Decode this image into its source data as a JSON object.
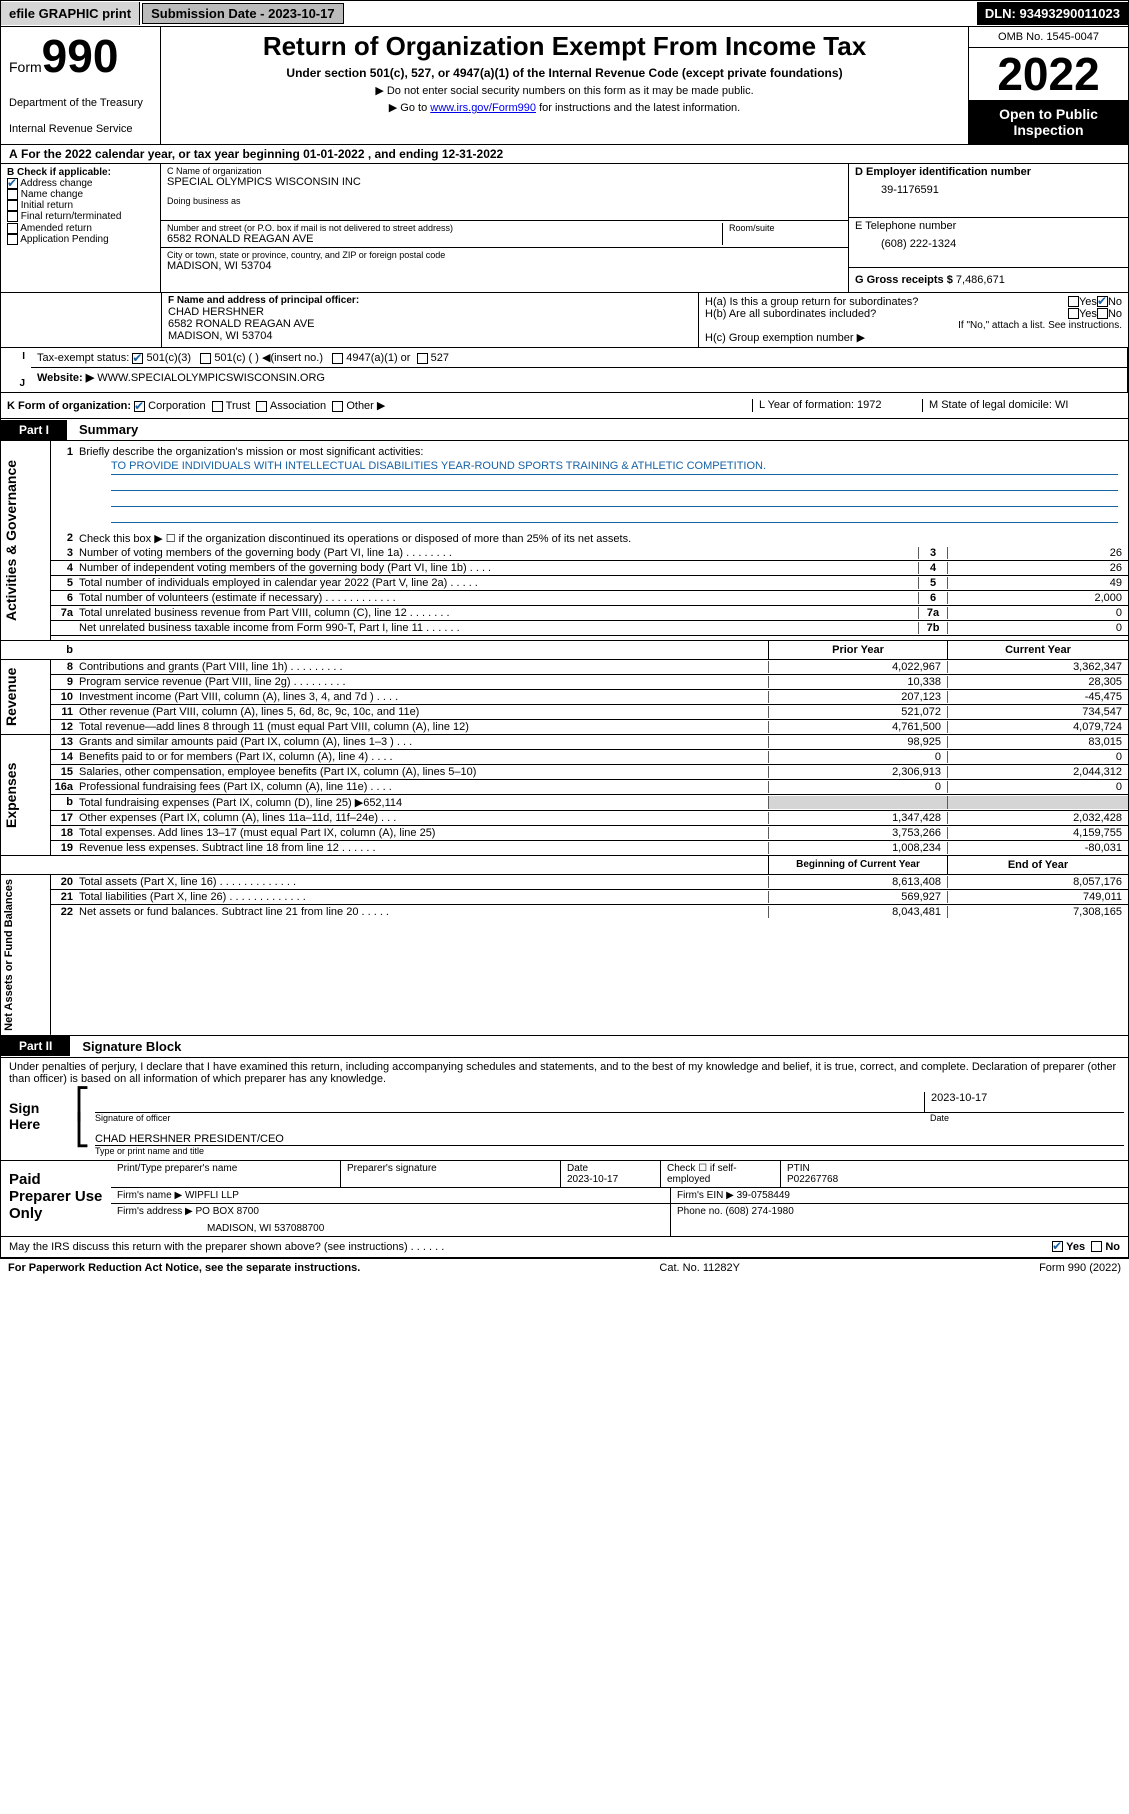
{
  "topbar": {
    "efile": "efile GRAPHIC print",
    "submission_date": "Submission Date - 2023-10-17",
    "dln": "DLN: 93493290011023"
  },
  "header": {
    "form": "Form",
    "form990": "990",
    "title": "Return of Organization Exempt From Income Tax",
    "subtitle": "Under section 501(c), 527, or 4947(a)(1) of the Internal Revenue Code (except private foundations)",
    "note1": "▶ Do not enter social security numbers on this form as it may be made public.",
    "note2_pre": "▶ Go to ",
    "note2_link": "www.irs.gov/Form990",
    "note2_post": " for instructions and the latest information.",
    "dept": "Department of the Treasury",
    "irs": "Internal Revenue Service",
    "omb": "OMB No. 1545-0047",
    "year": "2022",
    "open": "Open to Public Inspection"
  },
  "A": {
    "text": "For the 2022 calendar year, or tax year beginning 01-01-2022   , and ending 12-31-2022"
  },
  "B": {
    "label": "B Check if applicable:",
    "items": [
      "Address change",
      "Name change",
      "Initial return",
      "Final return/terminated",
      "Amended return",
      "Application Pending"
    ],
    "checked": [
      true,
      false,
      false,
      false,
      false,
      false
    ]
  },
  "C": {
    "name_label": "C Name of organization",
    "org": "SPECIAL OLYMPICS WISCONSIN INC",
    "dba_label": "Doing business as",
    "dba": "",
    "addr_label": "Number and street (or P.O. box if mail is not delivered to street address)",
    "room_label": "Room/suite",
    "addr": "6582 RONALD REAGAN AVE",
    "city_label": "City or town, state or province, country, and ZIP or foreign postal code",
    "city": "MADISON, WI  53704"
  },
  "D": {
    "label": "D Employer identification number",
    "ein": "39-1176591"
  },
  "E": {
    "label": "E Telephone number",
    "phone": "(608) 222-1324"
  },
  "G": {
    "label": "G Gross receipts $",
    "amt": "7,486,671"
  },
  "F": {
    "label": "F  Name and address of principal officer:",
    "name": "CHAD HERSHNER",
    "addr": "6582 RONALD REAGAN AVE",
    "city": "MADISON, WI  53704"
  },
  "H": {
    "a_label": "H(a)  Is this a group return for subordinates?",
    "a_yes": "Yes",
    "a_no": "No",
    "b_label": "H(b)  Are all subordinates included?",
    "b_yes": "Yes",
    "b_no": "No",
    "b_note": "If \"No,\" attach a list. See instructions.",
    "c_label": "H(c)  Group exemption number ▶"
  },
  "I": {
    "label": "Tax-exempt status:",
    "c1": "501(c)(3)",
    "c2": "501(c) (  ) ◀(insert no.)",
    "c3": "4947(a)(1) or",
    "c4": "527"
  },
  "J": {
    "label": "Website: ▶",
    "url": "WWW.SPECIALOLYMPICSWISCONSIN.ORG"
  },
  "K": {
    "label": "K Form of organization:",
    "o1": "Corporation",
    "o2": "Trust",
    "o3": "Association",
    "o4": "Other ▶"
  },
  "L": {
    "label": "L Year of formation: 1972"
  },
  "M": {
    "label": "M State of legal domicile: WI"
  },
  "partI": {
    "part": "Part I",
    "title": "Summary"
  },
  "summary": {
    "q1": "Briefly describe the organization's mission or most significant activities:",
    "mission": "TO PROVIDE INDIVIDUALS WITH INTELLECTUAL DISABILITIES YEAR-ROUND SPORTS TRAINING & ATHLETIC COMPETITION.",
    "q2": "Check this box ▶ ☐  if the organization discontinued its operations or disposed of more than 25% of its net assets.",
    "lines": [
      {
        "n": "3",
        "d": "Number of voting members of the governing body (Part VI, line 1a)   .    .    .    .    .    .    .    .",
        "box": "3",
        "v": "26"
      },
      {
        "n": "4",
        "d": "Number of independent voting members of the governing body (Part VI, line 1b)   .    .    .    .",
        "box": "4",
        "v": "26"
      },
      {
        "n": "5",
        "d": "Total number of individuals employed in calendar year 2022 (Part V, line 2a)   .    .    .    .    .",
        "box": "5",
        "v": "49"
      },
      {
        "n": "6",
        "d": "Total number of volunteers (estimate if necessary)   .    .    .    .    .    .    .    .    .    .    .    .",
        "box": "6",
        "v": "2,000"
      },
      {
        "n": "7a",
        "d": "Total unrelated business revenue from Part VIII, column (C), line 12   .    .    .    .    .    .    .",
        "box": "7a",
        "v": "0"
      },
      {
        "n": "",
        "d": "Net unrelated business taxable income from Form 990-T, Part I, line 11   .    .    .    .    .    .",
        "box": "7b",
        "v": "0"
      }
    ]
  },
  "rev_hdr": {
    "b": "b",
    "prior": "Prior Year",
    "cur": "Current Year"
  },
  "revenue": [
    {
      "n": "8",
      "d": "Contributions and grants (Part VIII, line 1h)   .    .    .    .    .    .    .    .    .",
      "p": "4,022,967",
      "c": "3,362,347"
    },
    {
      "n": "9",
      "d": "Program service revenue (Part VIII, line 2g)   .    .    .    .    .    .    .    .    .",
      "p": "10,338",
      "c": "28,305"
    },
    {
      "n": "10",
      "d": "Investment income (Part VIII, column (A), lines 3, 4, and 7d )   .    .    .    .",
      "p": "207,123",
      "c": "-45,475"
    },
    {
      "n": "11",
      "d": "Other revenue (Part VIII, column (A), lines 5, 6d, 8c, 9c, 10c, and 11e)",
      "p": "521,072",
      "c": "734,547"
    },
    {
      "n": "12",
      "d": "Total revenue—add lines 8 through 11 (must equal Part VIII, column (A), line 12)",
      "p": "4,761,500",
      "c": "4,079,724"
    }
  ],
  "expenses": [
    {
      "n": "13",
      "d": "Grants and similar amounts paid (Part IX, column (A), lines 1–3 )   .    .    .",
      "p": "98,925",
      "c": "83,015"
    },
    {
      "n": "14",
      "d": "Benefits paid to or for members (Part IX, column (A), line 4)   .    .    .    .",
      "p": "0",
      "c": "0"
    },
    {
      "n": "15",
      "d": "Salaries, other compensation, employee benefits (Part IX, column (A), lines 5–10)",
      "p": "2,306,913",
      "c": "2,044,312"
    },
    {
      "n": "16a",
      "d": "Professional fundraising fees (Part IX, column (A), line 11e)   .    .    .    .",
      "p": "0",
      "c": "0"
    },
    {
      "n": "b",
      "d": "Total fundraising expenses (Part IX, column (D), line 25) ▶652,114",
      "p": "",
      "c": "",
      "gray": true
    },
    {
      "n": "17",
      "d": "Other expenses (Part IX, column (A), lines 11a–11d, 11f–24e)   .    .    .",
      "p": "1,347,428",
      "c": "2,032,428"
    },
    {
      "n": "18",
      "d": "Total expenses. Add lines 13–17 (must equal Part IX, column (A), line 25)",
      "p": "3,753,266",
      "c": "4,159,755"
    },
    {
      "n": "19",
      "d": "Revenue less expenses. Subtract line 18 from line 12   .    .    .    .    .    .",
      "p": "1,008,234",
      "c": "-80,031"
    }
  ],
  "net_hdr": {
    "b": "Beginning of Current Year",
    "e": "End of Year"
  },
  "net": [
    {
      "n": "20",
      "d": "Total assets (Part X, line 16)   .    .    .    .    .    .    .    .    .    .    .    .    .",
      "p": "8,613,408",
      "c": "8,057,176"
    },
    {
      "n": "21",
      "d": "Total liabilities (Part X, line 26)   .    .    .    .    .    .    .    .    .    .    .    .    .",
      "p": "569,927",
      "c": "749,011"
    },
    {
      "n": "22",
      "d": "Net assets or fund balances. Subtract line 21 from line 20   .    .    .    .    .",
      "p": "8,043,481",
      "c": "7,308,165"
    }
  ],
  "partII": {
    "part": "Part II",
    "title": "Signature Block"
  },
  "penalty": "Under penalties of perjury, I declare that I have examined this return, including accompanying schedules and statements, and to the best of my knowledge and belief, it is true, correct, and complete. Declaration of preparer (other than officer) is based on all information of which preparer has any knowledge.",
  "sign": {
    "here": "Sign Here",
    "sig_label": "Signature of officer",
    "date_label": "Date",
    "date": "2023-10-17",
    "officer": "CHAD HERSHNER  PRESIDENT/CEO",
    "type_label": "Type or print name and title"
  },
  "prep": {
    "title": "Paid Preparer Use Only",
    "h": {
      "name": "Print/Type preparer's name",
      "sig": "Preparer's signature",
      "date": "Date",
      "date_v": "2023-10-17",
      "chk": "Check ☐ if self-employed",
      "ptin": "PTIN",
      "ptin_v": "P02267768"
    },
    "firm": {
      "label": "Firm's name   ▶",
      "name": "WIPFLI LLP",
      "ein_label": "Firm's EIN ▶",
      "ein": "39-0758449"
    },
    "addr": {
      "label": "Firm's address ▶",
      "addr": "PO BOX 8700",
      "city": "MADISON, WI  537088700",
      "phone_label": "Phone no.",
      "phone": "(608) 274-1980"
    }
  },
  "discuss": {
    "q": "May the IRS discuss this return with the preparer shown above? (see instructions)   .    .    .    .    .    .",
    "yes": "Yes",
    "no": "No"
  },
  "footer": {
    "l": "For Paperwork Reduction Act Notice, see the separate instructions.",
    "c": "Cat. No. 11282Y",
    "r": "Form 990 (2022)"
  },
  "sides": {
    "ag": "Activities & Governance",
    "rev": "Revenue",
    "exp": "Expenses",
    "net": "Net Assets or Fund Balances"
  }
}
